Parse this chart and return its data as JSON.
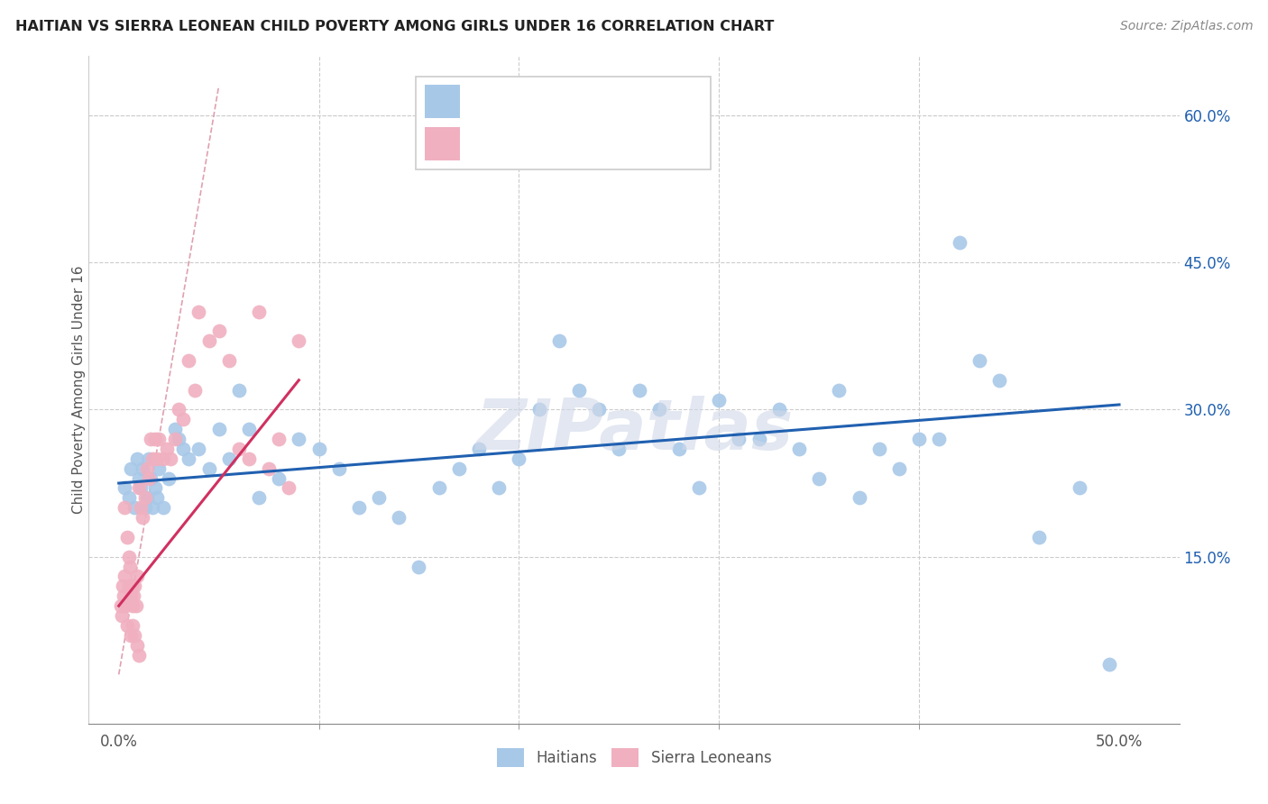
{
  "title": "HAITIAN VS SIERRA LEONEAN CHILD POVERTY AMONG GIRLS UNDER 16 CORRELATION CHART",
  "source": "Source: ZipAtlas.com",
  "xlabel_label": "Haitians",
  "xlabel2_label": "Sierra Leoneans",
  "ylabel_label": "Child Poverty Among Girls Under 16",
  "x_tick_labels_bottom": [
    "0.0%",
    "50.0%"
  ],
  "x_tick_vals_bottom": [
    0,
    50
  ],
  "y_tick_labels": [
    "15.0%",
    "30.0%",
    "45.0%",
    "60.0%"
  ],
  "y_tick_vals": [
    15,
    30,
    45,
    60
  ],
  "xlim": [
    -1.5,
    53
  ],
  "ylim": [
    -2,
    66
  ],
  "haiti_color": "#a8c8e8",
  "sierra_color": "#f0b0c0",
  "haiti_line_color": "#2060b0",
  "sierra_line_color": "#d03060",
  "ref_line_color": "#e0a0b0",
  "watermark": "ZIPatlas",
  "haiti_scatter_x": [
    0.3,
    0.5,
    0.6,
    0.8,
    0.9,
    1.0,
    1.1,
    1.2,
    1.3,
    1.4,
    1.5,
    1.6,
    1.7,
    1.8,
    1.9,
    2.0,
    2.2,
    2.5,
    2.8,
    3.0,
    3.2,
    3.5,
    4.0,
    4.5,
    5.0,
    5.5,
    6.0,
    6.5,
    7.0,
    8.0,
    9.0,
    10.0,
    11.0,
    12.0,
    13.0,
    14.0,
    15.0,
    16.0,
    17.0,
    18.0,
    19.0,
    20.0,
    21.0,
    22.0,
    23.0,
    24.0,
    25.0,
    26.0,
    27.0,
    28.0,
    29.0,
    30.0,
    31.0,
    32.0,
    33.0,
    34.0,
    35.0,
    36.0,
    37.0,
    38.0,
    39.0,
    40.0,
    41.0,
    42.0,
    43.0,
    44.0,
    46.0,
    48.0,
    49.5
  ],
  "haiti_scatter_y": [
    22,
    21,
    24,
    20,
    25,
    23,
    22,
    24,
    20,
    21,
    25,
    23,
    20,
    22,
    21,
    24,
    20,
    23,
    28,
    27,
    26,
    25,
    26,
    24,
    28,
    25,
    32,
    28,
    21,
    23,
    27,
    26,
    24,
    20,
    21,
    19,
    14,
    22,
    24,
    26,
    22,
    25,
    30,
    37,
    32,
    30,
    26,
    32,
    30,
    26,
    22,
    31,
    27,
    27,
    30,
    26,
    23,
    32,
    21,
    26,
    24,
    27,
    27,
    47,
    35,
    33,
    17,
    22,
    4
  ],
  "sierra_scatter_x": [
    0.1,
    0.15,
    0.2,
    0.25,
    0.3,
    0.35,
    0.4,
    0.5,
    0.55,
    0.6,
    0.65,
    0.7,
    0.75,
    0.8,
    0.85,
    0.9,
    1.0,
    1.1,
    1.2,
    1.3,
    1.4,
    1.5,
    1.6,
    1.7,
    1.8,
    1.9,
    2.0,
    2.2,
    2.4,
    2.6,
    2.8,
    3.0,
    3.2,
    3.5,
    3.8,
    4.0,
    4.5,
    5.0,
    5.5,
    6.0,
    6.5,
    7.0,
    7.5,
    8.0,
    8.5,
    9.0,
    0.3,
    0.4,
    0.5,
    0.6,
    0.7,
    0.8,
    0.9,
    1.0
  ],
  "sierra_scatter_y": [
    10,
    9,
    12,
    11,
    13,
    10,
    8,
    12,
    14,
    11,
    12,
    10,
    11,
    12,
    10,
    13,
    22,
    20,
    19,
    21,
    24,
    23,
    27,
    25,
    27,
    25,
    27,
    25,
    26,
    25,
    27,
    30,
    29,
    35,
    32,
    40,
    37,
    38,
    35,
    26,
    25,
    40,
    24,
    27,
    22,
    37,
    20,
    17,
    15,
    7,
    8,
    7,
    6,
    5
  ],
  "haiti_reg_x0": 0,
  "haiti_reg_x1": 50,
  "haiti_reg_y0": 22.5,
  "haiti_reg_y1": 30.5,
  "sierra_reg_x0": 0,
  "sierra_reg_x1": 9,
  "sierra_reg_y0": 10,
  "sierra_reg_y1": 33,
  "ref_line_x0": 0,
  "ref_line_x1": 5.0,
  "ref_line_y0": 3,
  "ref_line_y1": 63
}
